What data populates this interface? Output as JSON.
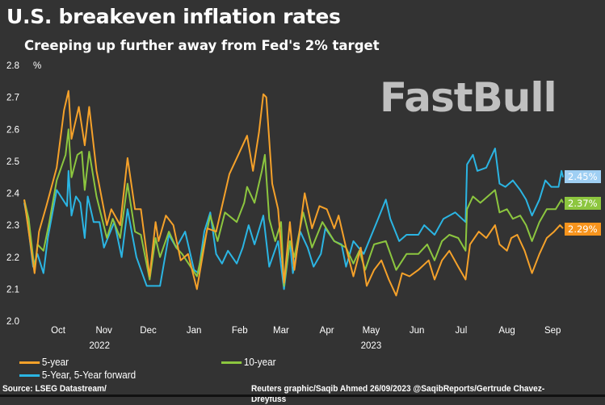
{
  "title": "U.S. breakeven inflation rates",
  "subtitle": "Creeping up further away from Fed's 2% target",
  "watermark": "FastBull",
  "source": "Source: LSEG Datastream/",
  "credit": "Reuters graphic/Saqib Ahmed 26/09/2023 @SaqibReports/Gertrude Chavez-Dreyfuss",
  "chart_data": {
    "type": "line",
    "ylabel": "%",
    "ylim": [
      2.0,
      2.8
    ],
    "yticks": [
      "2.0",
      "2.1",
      "2.2",
      "2.3",
      "2.4",
      "2.5",
      "2.6",
      "2.7",
      "2.8"
    ],
    "xlim": [
      "2022-09-22",
      "2023-09-22"
    ],
    "month_ticks": [
      {
        "label": "Oct",
        "date": "2022-10-15"
      },
      {
        "label": "Nov",
        "date": "2022-11-15"
      },
      {
        "label": "Dec",
        "date": "2022-12-15"
      },
      {
        "label": "Jan",
        "date": "2023-01-15"
      },
      {
        "label": "Feb",
        "date": "2023-02-15"
      },
      {
        "label": "Mar",
        "date": "2023-03-15"
      },
      {
        "label": "Apr",
        "date": "2023-04-15"
      },
      {
        "label": "May",
        "date": "2023-05-15"
      },
      {
        "label": "Jun",
        "date": "2023-06-15"
      },
      {
        "label": "Jul",
        "date": "2023-07-15"
      },
      {
        "label": "Aug",
        "date": "2023-08-15"
      },
      {
        "label": "Sep",
        "date": "2023-09-15"
      }
    ],
    "year_labels": [
      {
        "label": "2022",
        "date": "2022-11-12"
      },
      {
        "label": "2023",
        "date": "2023-05-15"
      }
    ],
    "grid": false,
    "legend_position": "bottom-left",
    "series": [
      {
        "name": "5-year",
        "color": "#f5a12a",
        "last_label": "2.29%",
        "tag_color": "#f7941d",
        "points": [
          [
            "2022-09-22",
            2.38
          ],
          [
            "2022-09-29",
            2.15
          ],
          [
            "2022-10-02",
            2.28
          ],
          [
            "2022-10-07",
            2.36
          ],
          [
            "2022-10-14",
            2.48
          ],
          [
            "2022-10-19",
            2.66
          ],
          [
            "2022-10-22",
            2.72
          ],
          [
            "2022-10-24",
            2.57
          ],
          [
            "2022-10-29",
            2.67
          ],
          [
            "2022-11-02",
            2.55
          ],
          [
            "2022-11-05",
            2.67
          ],
          [
            "2022-11-10",
            2.47
          ],
          [
            "2022-11-17",
            2.3
          ],
          [
            "2022-11-20",
            2.35
          ],
          [
            "2022-11-26",
            2.3
          ],
          [
            "2022-12-01",
            2.51
          ],
          [
            "2022-12-06",
            2.35
          ],
          [
            "2022-12-10",
            2.35
          ],
          [
            "2022-12-16",
            2.14
          ],
          [
            "2022-12-20",
            2.31
          ],
          [
            "2022-12-22",
            2.25
          ],
          [
            "2022-12-27",
            2.33
          ],
          [
            "2023-01-01",
            2.3
          ],
          [
            "2023-01-06",
            2.19
          ],
          [
            "2023-01-11",
            2.21
          ],
          [
            "2023-01-17",
            2.1
          ],
          [
            "2023-01-24",
            2.29
          ],
          [
            "2023-01-30",
            2.28
          ],
          [
            "2023-02-08",
            2.46
          ],
          [
            "2023-02-14",
            2.52
          ],
          [
            "2023-02-20",
            2.58
          ],
          [
            "2023-02-24",
            2.47
          ],
          [
            "2023-02-28",
            2.59
          ],
          [
            "2023-03-03",
            2.71
          ],
          [
            "2023-03-05",
            2.7
          ],
          [
            "2023-03-09",
            2.43
          ],
          [
            "2023-03-13",
            2.35
          ],
          [
            "2023-03-17",
            2.12
          ],
          [
            "2023-03-21",
            2.31
          ],
          [
            "2023-03-24",
            2.16
          ],
          [
            "2023-03-31",
            2.4
          ],
          [
            "2023-04-05",
            2.29
          ],
          [
            "2023-04-10",
            2.36
          ],
          [
            "2023-04-15",
            2.35
          ],
          [
            "2023-04-20",
            2.29
          ],
          [
            "2023-04-23",
            2.33
          ],
          [
            "2023-04-28",
            2.23
          ],
          [
            "2023-05-03",
            2.14
          ],
          [
            "2023-05-08",
            2.23
          ],
          [
            "2023-05-12",
            2.11
          ],
          [
            "2023-05-17",
            2.16
          ],
          [
            "2023-05-22",
            2.19
          ],
          [
            "2023-05-27",
            2.13
          ],
          [
            "2023-06-01",
            2.08
          ],
          [
            "2023-06-05",
            2.15
          ],
          [
            "2023-06-10",
            2.14
          ],
          [
            "2023-06-16",
            2.16
          ],
          [
            "2023-06-23",
            2.19
          ],
          [
            "2023-06-27",
            2.13
          ],
          [
            "2023-07-02",
            2.19
          ],
          [
            "2023-07-07",
            2.22
          ],
          [
            "2023-07-13",
            2.17
          ],
          [
            "2023-07-18",
            2.13
          ],
          [
            "2023-07-21",
            2.24
          ],
          [
            "2023-07-27",
            2.28
          ],
          [
            "2023-08-01",
            2.26
          ],
          [
            "2023-08-07",
            2.3
          ],
          [
            "2023-08-10",
            2.24
          ],
          [
            "2023-08-15",
            2.22
          ],
          [
            "2023-08-18",
            2.26
          ],
          [
            "2023-08-22",
            2.27
          ],
          [
            "2023-08-27",
            2.22
          ],
          [
            "2023-09-01",
            2.15
          ],
          [
            "2023-09-06",
            2.21
          ],
          [
            "2023-09-11",
            2.26
          ],
          [
            "2023-09-16",
            2.28
          ],
          [
            "2023-09-20",
            2.3
          ],
          [
            "2023-09-22",
            2.29
          ]
        ]
      },
      {
        "name": "5-Year, 5-Year forward",
        "color": "#2bb5e3",
        "last_label": "2.45%",
        "tag_color": "#9fcff3",
        "points": [
          [
            "2022-09-22",
            2.37
          ],
          [
            "2022-09-24",
            2.32
          ],
          [
            "2022-09-28",
            2.17
          ],
          [
            "2022-10-01",
            2.21
          ],
          [
            "2022-10-05",
            2.15
          ],
          [
            "2022-10-08",
            2.26
          ],
          [
            "2022-10-14",
            2.41
          ],
          [
            "2022-10-21",
            2.36
          ],
          [
            "2022-10-22",
            2.47
          ],
          [
            "2022-10-24",
            2.33
          ],
          [
            "2022-10-27",
            2.39
          ],
          [
            "2022-10-30",
            2.37
          ],
          [
            "2022-11-02",
            2.26
          ],
          [
            "2022-11-04",
            2.39
          ],
          [
            "2022-11-08",
            2.31
          ],
          [
            "2022-11-12",
            2.31
          ],
          [
            "2022-11-15",
            2.23
          ],
          [
            "2022-11-22",
            2.31
          ],
          [
            "2022-11-27",
            2.2
          ],
          [
            "2022-12-01",
            2.35
          ],
          [
            "2022-12-07",
            2.2
          ],
          [
            "2022-12-14",
            2.11
          ],
          [
            "2022-12-23",
            2.11
          ],
          [
            "2022-12-29",
            2.27
          ],
          [
            "2023-01-03",
            2.23
          ],
          [
            "2023-01-09",
            2.28
          ],
          [
            "2023-01-15",
            2.16
          ],
          [
            "2023-01-18",
            2.15
          ],
          [
            "2023-01-22",
            2.28
          ],
          [
            "2023-01-26",
            2.34
          ],
          [
            "2023-01-30",
            2.21
          ],
          [
            "2023-02-03",
            2.18
          ],
          [
            "2023-02-07",
            2.22
          ],
          [
            "2023-02-13",
            2.18
          ],
          [
            "2023-02-17",
            2.23
          ],
          [
            "2023-02-21",
            2.3
          ],
          [
            "2023-02-25",
            2.24
          ],
          [
            "2023-03-03",
            2.33
          ],
          [
            "2023-03-07",
            2.17
          ],
          [
            "2023-03-13",
            2.25
          ],
          [
            "2023-03-17",
            2.1
          ],
          [
            "2023-03-21",
            2.25
          ],
          [
            "2023-03-23",
            2.15
          ],
          [
            "2023-03-28",
            2.28
          ],
          [
            "2023-04-02",
            2.23
          ],
          [
            "2023-04-06",
            2.17
          ],
          [
            "2023-04-11",
            2.21
          ],
          [
            "2023-04-14",
            2.29
          ],
          [
            "2023-04-20",
            2.25
          ],
          [
            "2023-04-25",
            2.24
          ],
          [
            "2023-04-28",
            2.17
          ],
          [
            "2023-05-03",
            2.25
          ],
          [
            "2023-05-10",
            2.21
          ],
          [
            "2023-05-18",
            2.3
          ],
          [
            "2023-05-25",
            2.38
          ],
          [
            "2023-05-28",
            2.32
          ],
          [
            "2023-06-03",
            2.25
          ],
          [
            "2023-06-08",
            2.27
          ],
          [
            "2023-06-16",
            2.27
          ],
          [
            "2023-06-20",
            2.3
          ],
          [
            "2023-06-27",
            2.27
          ],
          [
            "2023-07-03",
            2.32
          ],
          [
            "2023-07-11",
            2.34
          ],
          [
            "2023-07-18",
            2.31
          ],
          [
            "2023-07-19",
            2.49
          ],
          [
            "2023-07-23",
            2.52
          ],
          [
            "2023-07-26",
            2.47
          ],
          [
            "2023-08-01",
            2.48
          ],
          [
            "2023-08-07",
            2.54
          ],
          [
            "2023-08-10",
            2.43
          ],
          [
            "2023-08-14",
            2.42
          ],
          [
            "2023-08-19",
            2.44
          ],
          [
            "2023-08-24",
            2.41
          ],
          [
            "2023-08-28",
            2.38
          ],
          [
            "2023-09-01",
            2.33
          ],
          [
            "2023-09-06",
            2.38
          ],
          [
            "2023-09-10",
            2.44
          ],
          [
            "2023-09-14",
            2.42
          ],
          [
            "2023-09-19",
            2.42
          ],
          [
            "2023-09-21",
            2.47
          ],
          [
            "2023-09-22",
            2.45
          ]
        ]
      },
      {
        "name": "10-year",
        "color": "#8cc63f",
        "last_label": "2.37%",
        "tag_color": "#8dc63f",
        "points": [
          [
            "2022-09-22",
            2.38
          ],
          [
            "2022-09-25",
            2.32
          ],
          [
            "2022-09-29",
            2.16
          ],
          [
            "2022-10-01",
            2.24
          ],
          [
            "2022-10-05",
            2.22
          ],
          [
            "2022-10-09",
            2.31
          ],
          [
            "2022-10-14",
            2.44
          ],
          [
            "2022-10-20",
            2.52
          ],
          [
            "2022-10-22",
            2.6
          ],
          [
            "2022-10-24",
            2.45
          ],
          [
            "2022-10-28",
            2.52
          ],
          [
            "2022-10-31",
            2.53
          ],
          [
            "2022-11-02",
            2.41
          ],
          [
            "2022-11-05",
            2.53
          ],
          [
            "2022-11-10",
            2.39
          ],
          [
            "2022-11-17",
            2.26
          ],
          [
            "2022-11-21",
            2.32
          ],
          [
            "2022-11-26",
            2.26
          ],
          [
            "2022-12-01",
            2.43
          ],
          [
            "2022-12-06",
            2.28
          ],
          [
            "2022-12-10",
            2.27
          ],
          [
            "2022-12-16",
            2.13
          ],
          [
            "2022-12-20",
            2.26
          ],
          [
            "2022-12-23",
            2.2
          ],
          [
            "2022-12-29",
            2.28
          ],
          [
            "2023-01-03",
            2.23
          ],
          [
            "2023-01-07",
            2.21
          ],
          [
            "2023-01-17",
            2.14
          ],
          [
            "2023-01-26",
            2.33
          ],
          [
            "2023-01-31",
            2.25
          ],
          [
            "2023-02-05",
            2.34
          ],
          [
            "2023-02-13",
            2.31
          ],
          [
            "2023-02-18",
            2.37
          ],
          [
            "2023-02-20",
            2.42
          ],
          [
            "2023-02-25",
            2.37
          ],
          [
            "2023-03-02",
            2.47
          ],
          [
            "2023-03-04",
            2.52
          ],
          [
            "2023-03-07",
            2.32
          ],
          [
            "2023-03-11",
            2.25
          ],
          [
            "2023-03-15",
            2.31
          ],
          [
            "2023-03-17",
            2.11
          ],
          [
            "2023-03-21",
            2.25
          ],
          [
            "2023-03-24",
            2.2
          ],
          [
            "2023-03-30",
            2.34
          ],
          [
            "2023-04-05",
            2.23
          ],
          [
            "2023-04-12",
            2.31
          ],
          [
            "2023-04-20",
            2.25
          ],
          [
            "2023-04-28",
            2.23
          ],
          [
            "2023-05-03",
            2.18
          ],
          [
            "2023-05-07",
            2.22
          ],
          [
            "2023-05-11",
            2.16
          ],
          [
            "2023-05-17",
            2.24
          ],
          [
            "2023-05-25",
            2.25
          ],
          [
            "2023-06-01",
            2.16
          ],
          [
            "2023-06-08",
            2.21
          ],
          [
            "2023-06-16",
            2.21
          ],
          [
            "2023-06-22",
            2.24
          ],
          [
            "2023-06-27",
            2.19
          ],
          [
            "2023-07-02",
            2.25
          ],
          [
            "2023-07-07",
            2.27
          ],
          [
            "2023-07-13",
            2.26
          ],
          [
            "2023-07-18",
            2.22
          ],
          [
            "2023-07-19",
            2.35
          ],
          [
            "2023-07-23",
            2.39
          ],
          [
            "2023-07-28",
            2.37
          ],
          [
            "2023-08-07",
            2.41
          ],
          [
            "2023-08-10",
            2.34
          ],
          [
            "2023-08-15",
            2.35
          ],
          [
            "2023-08-19",
            2.32
          ],
          [
            "2023-08-24",
            2.33
          ],
          [
            "2023-08-28",
            2.3
          ],
          [
            "2023-09-01",
            2.25
          ],
          [
            "2023-09-06",
            2.31
          ],
          [
            "2023-09-11",
            2.35
          ],
          [
            "2023-09-17",
            2.35
          ],
          [
            "2023-09-21",
            2.38
          ],
          [
            "2023-09-22",
            2.37
          ]
        ]
      }
    ]
  }
}
